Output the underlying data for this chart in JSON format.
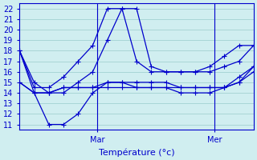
{
  "xlabel": "Température (°c)",
  "bg_color": "#d0eef0",
  "line_color": "#0000cc",
  "grid_color": "#99cccc",
  "axis_color": "#0000cc",
  "xlim": [
    0,
    48
  ],
  "ylim": [
    10.5,
    22.5
  ],
  "yticks": [
    11,
    12,
    13,
    14,
    15,
    16,
    17,
    18,
    19,
    20,
    21,
    22
  ],
  "day_ticks": [
    16,
    40
  ],
  "day_labels": [
    "Mar",
    "Mer"
  ],
  "series": [
    {
      "x": [
        0,
        3,
        6,
        9,
        12,
        15,
        18,
        21,
        24,
        27,
        30,
        33,
        36,
        39,
        42,
        45,
        48
      ],
      "y": [
        18,
        15,
        14,
        14,
        15,
        16,
        19,
        22,
        22,
        16.5,
        16,
        16,
        16,
        16,
        16.5,
        17,
        18.5
      ]
    },
    {
      "x": [
        0,
        3,
        6,
        9,
        12,
        15,
        18,
        21,
        24,
        27,
        30,
        33,
        36,
        39,
        42,
        45,
        48
      ],
      "y": [
        18,
        14,
        11,
        11,
        12,
        14,
        15,
        15,
        14.5,
        14.5,
        14.5,
        14,
        14,
        14,
        14.5,
        15.5,
        16.5
      ]
    },
    {
      "x": [
        0,
        3,
        6,
        9,
        12,
        15,
        18,
        21,
        24,
        27,
        30,
        33,
        36,
        39,
        42,
        45,
        48
      ],
      "y": [
        15,
        14,
        14,
        14.5,
        14.5,
        14.5,
        14.5,
        14.5,
        14.5,
        14.5,
        14.5,
        14.5,
        14.5,
        14.5,
        14.5,
        15,
        16
      ]
    },
    {
      "x": [
        0,
        3,
        6,
        9,
        12,
        15,
        18,
        21,
        24,
        27,
        30,
        33,
        36,
        39,
        42,
        45,
        48
      ],
      "y": [
        18,
        14.5,
        14.5,
        15.5,
        17,
        18.5,
        22,
        22,
        17,
        16,
        16,
        16,
        16,
        16.5,
        17.5,
        18.5,
        18.5
      ]
    },
    {
      "x": [
        0,
        3,
        6,
        9,
        12,
        15,
        18,
        21,
        24,
        27,
        30,
        33,
        36,
        39,
        42,
        45,
        48
      ],
      "y": [
        15,
        14,
        14,
        14.5,
        14.5,
        14.5,
        15,
        15,
        15,
        15,
        15,
        14.5,
        14.5,
        14.5,
        14.5,
        15,
        16.5
      ]
    }
  ],
  "marker": "+",
  "markersize": 4,
  "linewidth": 0.9
}
